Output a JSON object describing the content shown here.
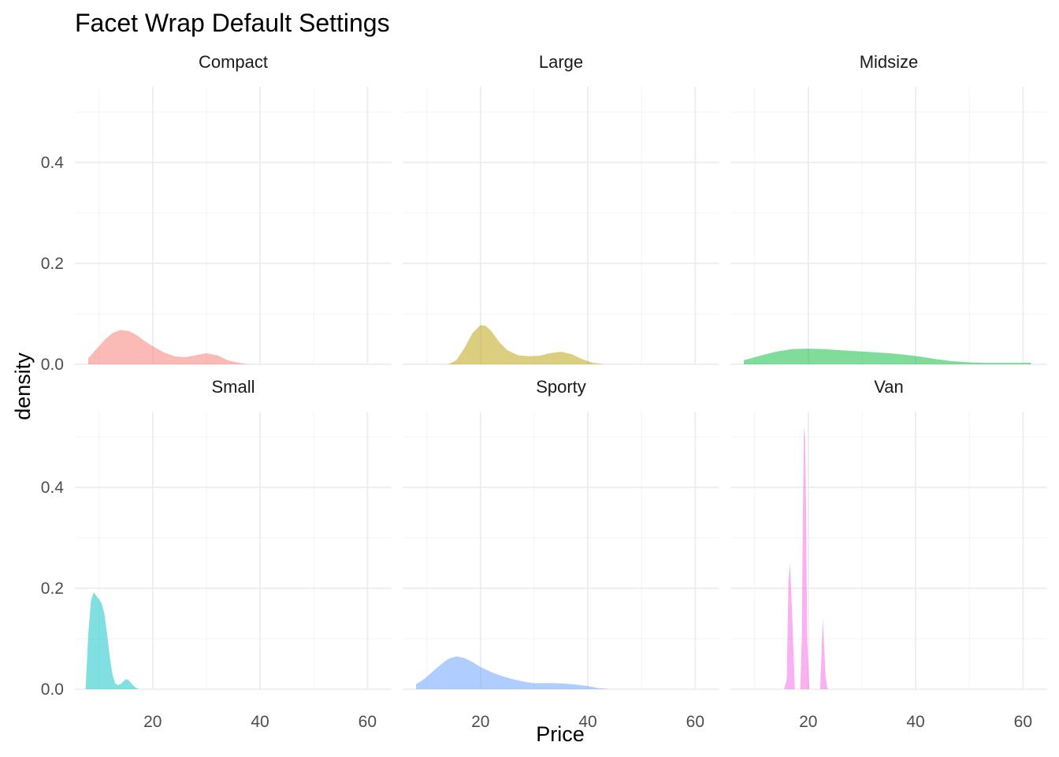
{
  "chart_data": {
    "type": "area",
    "title": "Facet Wrap Default Settings",
    "xlabel": "Price",
    "ylabel": "density",
    "xlim": [
      5.5,
      64.5
    ],
    "ylim": [
      0,
      0.55
    ],
    "x_ticks": [
      20,
      40,
      60
    ],
    "y_ticks": [
      0.0,
      0.2,
      0.4
    ],
    "x_tick_labels": [
      "20",
      "40",
      "60"
    ],
    "y_tick_labels": [
      "0.0",
      "0.2",
      "0.4"
    ],
    "grid": true,
    "legend": "none",
    "fill_opacity": 0.5,
    "facets": [
      {
        "label": "Compact",
        "color": "#F8766D",
        "x": [
          8.0,
          9.5,
          11.0,
          12.5,
          14.0,
          15.5,
          17.0,
          18.5,
          20.0,
          22.0,
          24.0,
          26.0,
          28.0,
          30.0,
          32.0,
          34.0,
          36.0,
          38.0
        ],
        "y": [
          0.012,
          0.03,
          0.048,
          0.062,
          0.068,
          0.066,
          0.058,
          0.046,
          0.036,
          0.024,
          0.016,
          0.014,
          0.018,
          0.022,
          0.018,
          0.008,
          0.003,
          0.0
        ]
      },
      {
        "label": "Large",
        "color": "#B79F00",
        "x": [
          14.0,
          15.5,
          17.0,
          18.5,
          20.0,
          21.0,
          22.0,
          23.5,
          25.0,
          27.0,
          29.0,
          31.0,
          33.0,
          35.0,
          37.0,
          39.0,
          41.0,
          43.0
        ],
        "y": [
          0.0,
          0.008,
          0.032,
          0.062,
          0.078,
          0.076,
          0.066,
          0.044,
          0.028,
          0.018,
          0.016,
          0.017,
          0.022,
          0.025,
          0.02,
          0.01,
          0.003,
          0.0
        ]
      },
      {
        "label": "Midsize",
        "color": "#00BA38",
        "x": [
          8.0,
          11.0,
          14.0,
          17.0,
          20.0,
          23.0,
          26.0,
          29.0,
          32.0,
          35.0,
          38.0,
          41.0,
          44.0,
          47.0,
          50.0,
          53.0,
          56.0,
          59.0,
          61.5
        ],
        "y": [
          0.008,
          0.017,
          0.025,
          0.03,
          0.031,
          0.03,
          0.028,
          0.026,
          0.024,
          0.022,
          0.019,
          0.015,
          0.01,
          0.006,
          0.004,
          0.003,
          0.003,
          0.003,
          0.003
        ]
      },
      {
        "label": "Small",
        "color": "#00BFC4",
        "x": [
          7.5,
          8.0,
          8.5,
          9.0,
          9.5,
          10.0,
          10.5,
          11.0,
          11.5,
          12.0,
          12.5,
          13.0,
          13.5,
          14.0,
          14.5,
          15.0,
          15.5,
          16.0,
          16.5,
          17.0,
          17.5
        ],
        "y": [
          0.0,
          0.11,
          0.175,
          0.192,
          0.185,
          0.178,
          0.17,
          0.15,
          0.11,
          0.065,
          0.03,
          0.012,
          0.008,
          0.01,
          0.015,
          0.02,
          0.018,
          0.012,
          0.006,
          0.002,
          0.0
        ]
      },
      {
        "label": "Sporty",
        "color": "#619CFF",
        "x": [
          8.0,
          9.5,
          11.0,
          12.5,
          14.0,
          15.5,
          17.0,
          18.5,
          20.0,
          22.0,
          24.0,
          26.0,
          28.0,
          30.0,
          32.0,
          34.0,
          36.0,
          38.0,
          40.0,
          42.0,
          44.0
        ],
        "y": [
          0.01,
          0.02,
          0.034,
          0.048,
          0.06,
          0.065,
          0.062,
          0.054,
          0.044,
          0.034,
          0.026,
          0.02,
          0.015,
          0.012,
          0.012,
          0.012,
          0.011,
          0.009,
          0.006,
          0.002,
          0.0
        ]
      },
      {
        "label": "Van",
        "color": "#F564E3",
        "x": [
          15.5,
          16.0,
          16.3,
          16.6,
          17.0,
          17.5,
          18.0,
          18.5,
          18.8,
          19.0,
          19.2,
          19.4,
          19.6,
          19.8,
          20.2,
          20.7,
          21.5,
          22.2,
          22.5,
          22.7,
          22.9,
          23.2,
          23.5,
          23.7
        ],
        "y": [
          0.0,
          0.02,
          0.21,
          0.25,
          0.15,
          0.0,
          0.0,
          0.0,
          0.1,
          0.35,
          0.52,
          0.5,
          0.35,
          0.1,
          0.0,
          0.0,
          0.0,
          0.0,
          0.08,
          0.14,
          0.1,
          0.03,
          0.005,
          0.0
        ]
      }
    ]
  }
}
